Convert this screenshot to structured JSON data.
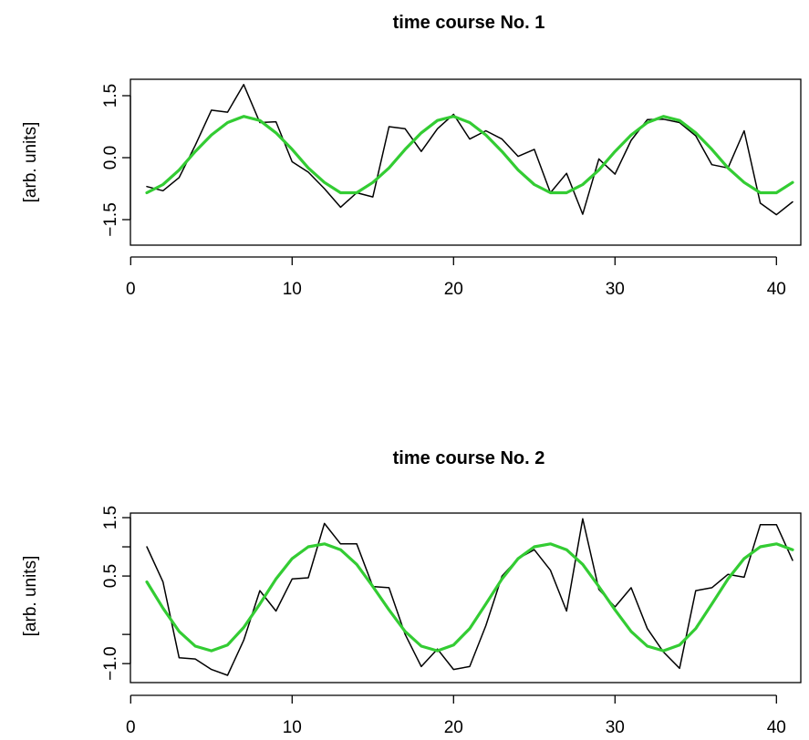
{
  "chart_data": [
    {
      "type": "line",
      "title": "time course No. 1",
      "xlabel": "",
      "ylabel": "[arb. units]",
      "xlim": [
        1,
        41
      ],
      "ylim": [
        -1.5,
        1.5
      ],
      "x_ticks": [
        0,
        10,
        20,
        30,
        40
      ],
      "y_ticks": [
        -1.5,
        0.0,
        1.5
      ],
      "x_tick_labels": [
        "0",
        "10",
        "20",
        "30",
        "40"
      ],
      "y_tick_labels": [
        "−1.5",
        "0.0",
        "1.5"
      ],
      "grid": false,
      "series": [
        {
          "color": "#000000",
          "x": [
            1,
            2,
            3,
            4,
            5,
            6,
            7,
            8,
            9,
            10,
            11,
            12,
            13,
            14,
            15,
            16,
            17,
            18,
            19,
            20,
            21,
            22,
            23,
            24,
            25,
            26,
            27,
            28,
            29,
            30,
            31,
            32,
            33,
            34,
            35,
            36,
            37,
            38,
            39,
            40,
            41
          ],
          "values": [
            -0.7,
            -0.8,
            -0.48,
            0.3,
            1.15,
            1.1,
            1.77,
            0.85,
            0.87,
            -0.1,
            -0.35,
            -0.75,
            -1.2,
            -0.85,
            -0.95,
            0.75,
            0.7,
            0.15,
            0.7,
            1.05,
            0.45,
            0.65,
            0.45,
            0.03,
            0.2,
            -0.85,
            -0.38,
            -1.37,
            -0.03,
            -0.4,
            0.42,
            0.92,
            0.93,
            0.85,
            0.53,
            -0.17,
            -0.25,
            0.65,
            -1.1,
            -1.38,
            -1.07
          ]
        },
        {
          "color": "#33cc33",
          "x": [
            1,
            2,
            3,
            4,
            5,
            6,
            7,
            8,
            9,
            10,
            11,
            12,
            13,
            14,
            15,
            16,
            17,
            18,
            19,
            20,
            21,
            22,
            23,
            24,
            25,
            26,
            27,
            28,
            29,
            30,
            31,
            32,
            33,
            34,
            35,
            36,
            37,
            38,
            39,
            40,
            41
          ],
          "values": [
            -0.85,
            -0.65,
            -0.3,
            0.15,
            0.55,
            0.85,
            1.0,
            0.9,
            0.6,
            0.2,
            -0.25,
            -0.6,
            -0.85,
            -0.85,
            -0.6,
            -0.25,
            0.2,
            0.6,
            0.9,
            1.0,
            0.85,
            0.55,
            0.15,
            -0.3,
            -0.65,
            -0.85,
            -0.85,
            -0.65,
            -0.3,
            0.15,
            0.55,
            0.85,
            1.0,
            0.9,
            0.6,
            0.2,
            -0.25,
            -0.6,
            -0.85,
            -0.85,
            -0.6
          ]
        }
      ]
    },
    {
      "type": "line",
      "title": "time course No. 2",
      "xlabel": "",
      "ylabel": "[arb. units]",
      "xlim": [
        1,
        41
      ],
      "ylim": [
        -1.2,
        1.5
      ],
      "x_ticks": [
        0,
        10,
        20,
        30,
        40
      ],
      "y_ticks": [
        -1.0,
        0.5,
        1.5
      ],
      "minor_y_ticks": [
        -0.5,
        1.0
      ],
      "x_tick_labels": [
        "0",
        "10",
        "20",
        "30",
        "40"
      ],
      "y_tick_labels": [
        "−1.0",
        "0.5",
        "1.5"
      ],
      "grid": false,
      "series": [
        {
          "color": "#000000",
          "x": [
            1,
            2,
            3,
            4,
            5,
            6,
            7,
            8,
            9,
            10,
            11,
            12,
            13,
            14,
            15,
            16,
            17,
            18,
            19,
            20,
            21,
            22,
            23,
            24,
            25,
            26,
            27,
            28,
            29,
            30,
            31,
            32,
            33,
            34,
            35,
            36,
            37,
            38,
            39,
            40,
            41
          ],
          "values": [
            1.0,
            0.4,
            -0.9,
            -0.92,
            -1.1,
            -1.2,
            -0.6,
            0.25,
            -0.1,
            0.45,
            0.47,
            1.4,
            1.05,
            1.05,
            0.32,
            0.3,
            -0.5,
            -1.05,
            -0.75,
            -1.1,
            -1.05,
            -0.35,
            0.5,
            0.8,
            0.95,
            0.6,
            -0.1,
            1.48,
            0.27,
            -0.03,
            0.3,
            -0.4,
            -0.8,
            -1.08,
            0.25,
            0.3,
            0.53,
            0.48,
            1.38,
            1.38,
            0.77
          ]
        },
        {
          "color": "#33cc33",
          "x": [
            1,
            2,
            3,
            4,
            5,
            6,
            7,
            8,
            9,
            10,
            11,
            12,
            13,
            14,
            15,
            16,
            17,
            18,
            19,
            20,
            21,
            22,
            23,
            24,
            25,
            26,
            27,
            28,
            29,
            30,
            31,
            32,
            33,
            34,
            35,
            36,
            37,
            38,
            39,
            40,
            41
          ],
          "values": [
            0.4,
            -0.05,
            -0.45,
            -0.7,
            -0.78,
            -0.68,
            -0.38,
            0.02,
            0.45,
            0.8,
            1.0,
            1.05,
            0.95,
            0.7,
            0.32,
            -0.08,
            -0.45,
            -0.7,
            -0.78,
            -0.68,
            -0.4,
            0.02,
            0.45,
            0.8,
            1.0,
            1.05,
            0.95,
            0.7,
            0.32,
            -0.08,
            -0.45,
            -0.7,
            -0.78,
            -0.68,
            -0.4,
            0.02,
            0.45,
            0.8,
            1.0,
            1.05,
            0.95
          ]
        }
      ]
    }
  ]
}
